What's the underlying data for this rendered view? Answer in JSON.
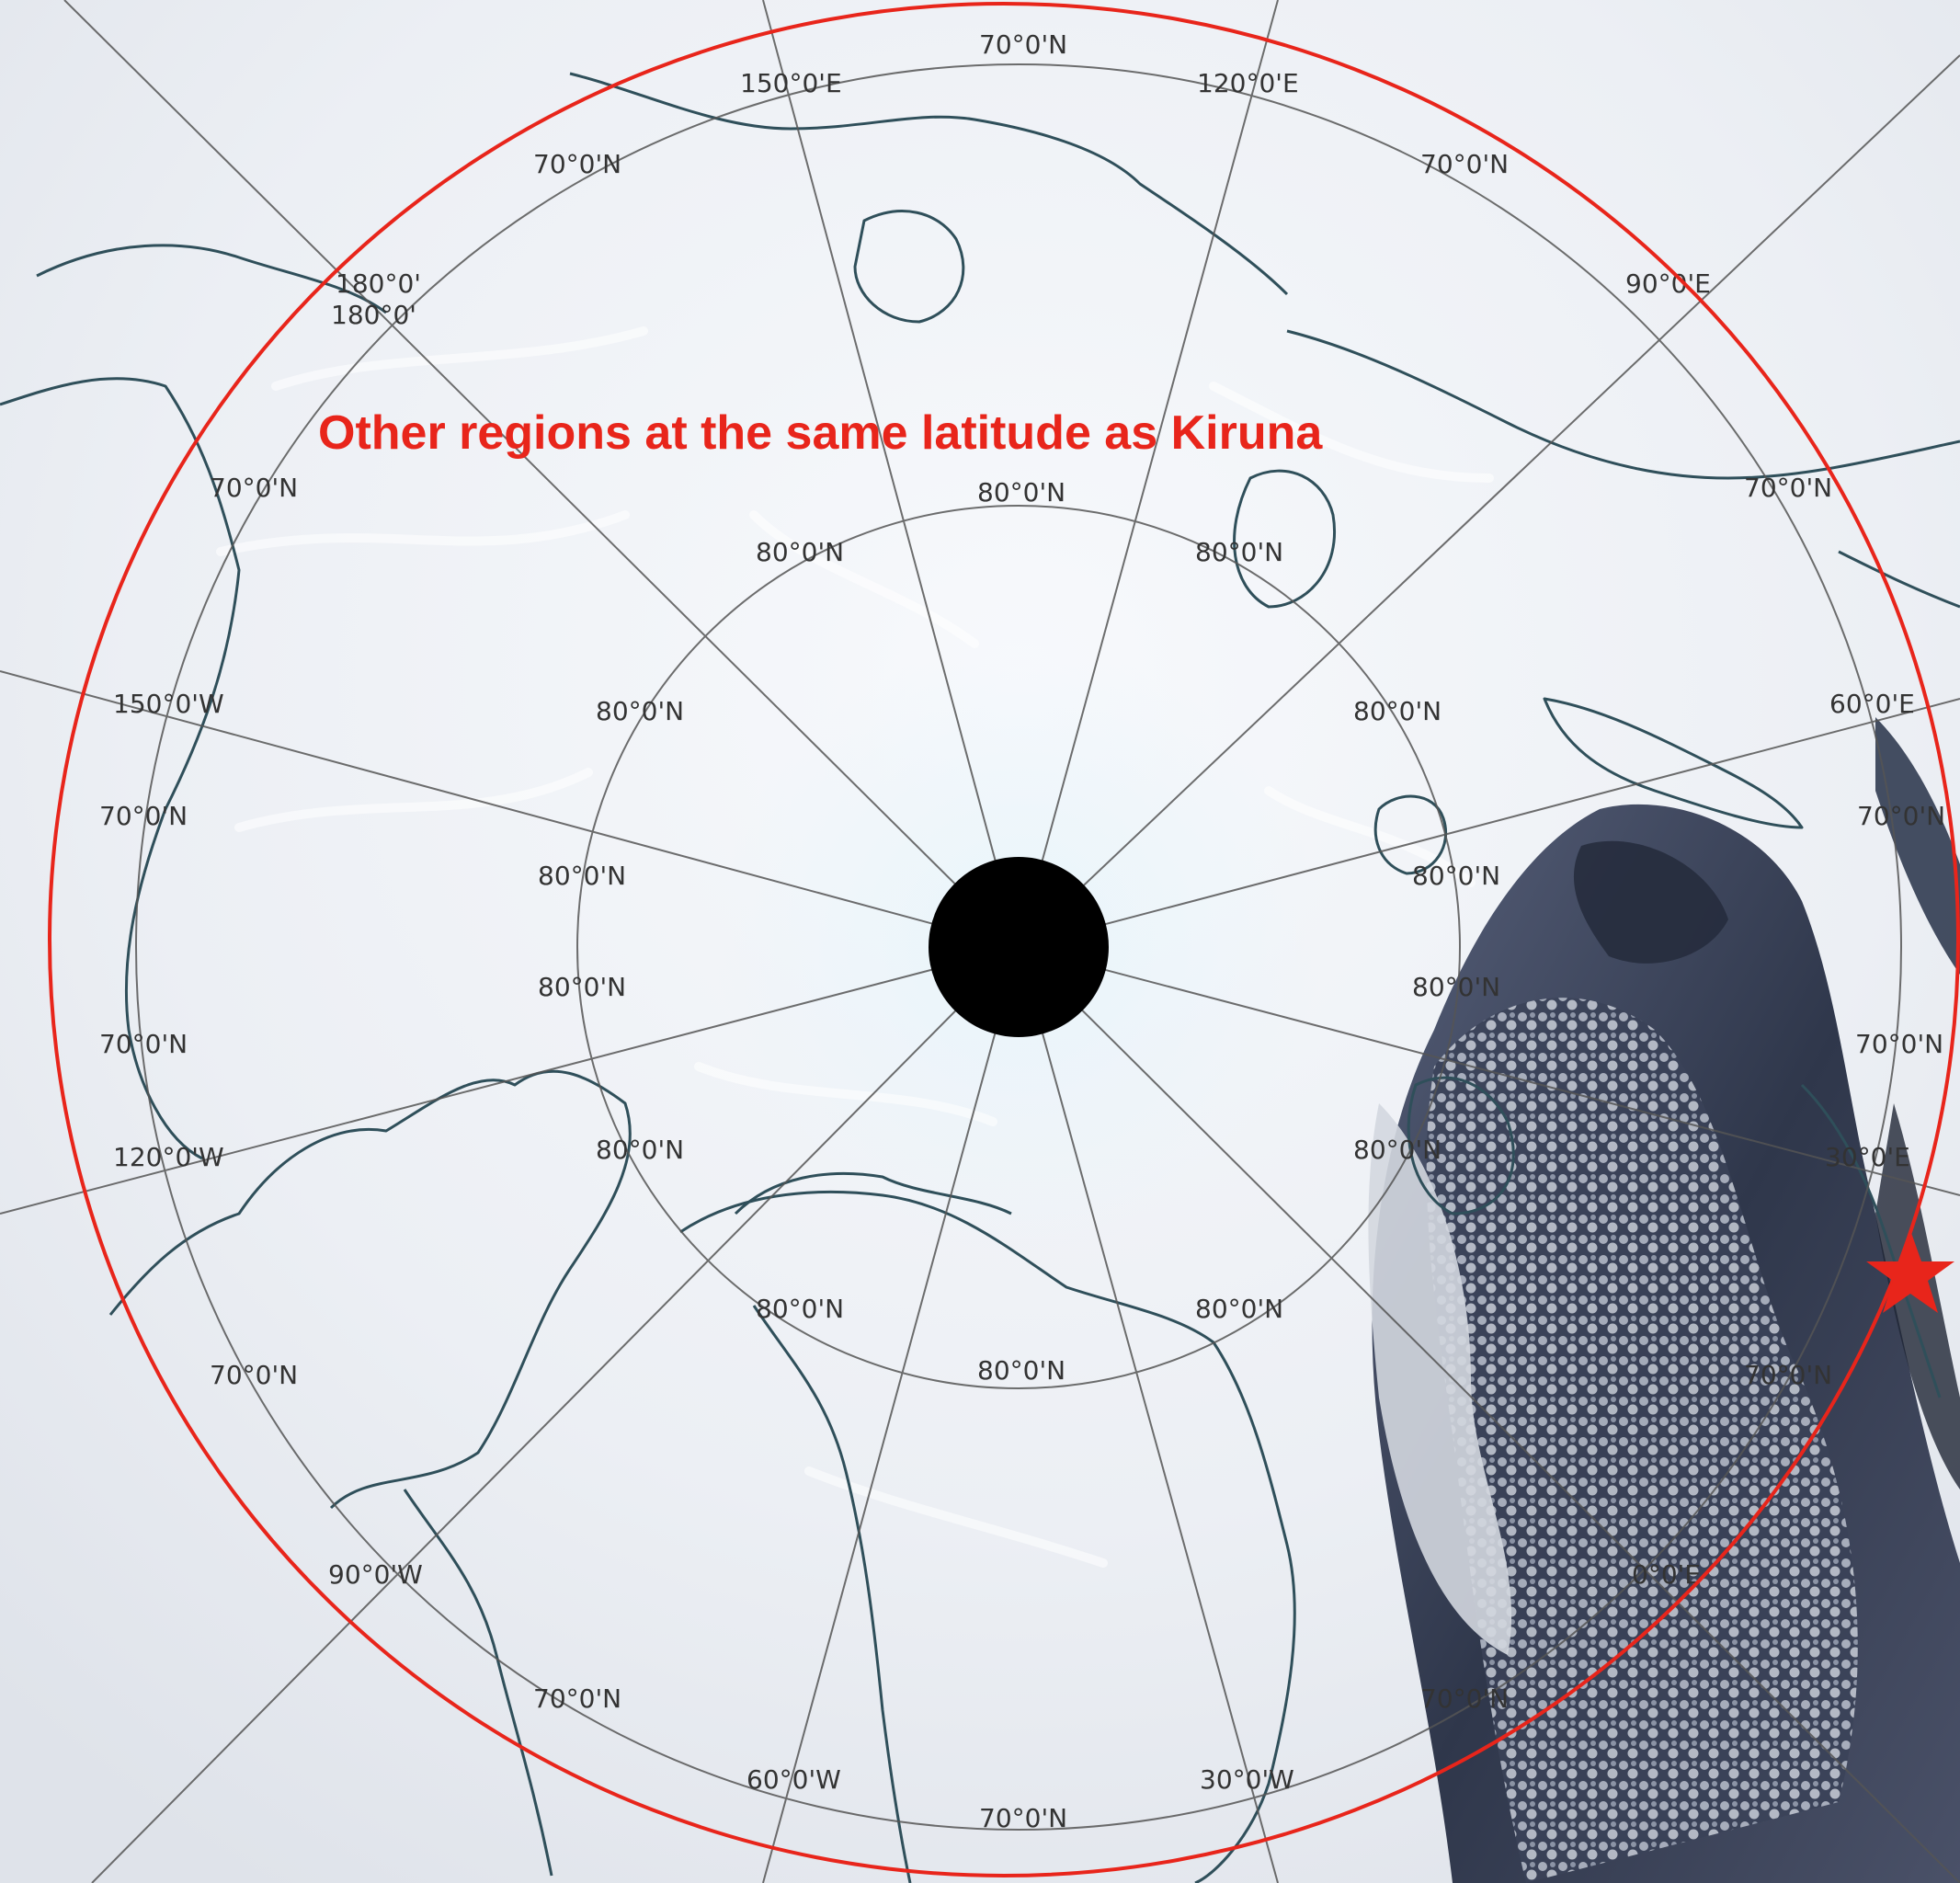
{
  "map": {
    "projection": "north-polar-stereographic",
    "base": "satellite-imagery-arctic-sea-ice",
    "colors": {
      "ice": "#f2f5f9",
      "ice_shadow": "#dfe5ee",
      "coastline": "#2f4f5a",
      "graticule": "#555555",
      "ocean_dark": "#2b3346",
      "cloud": "#c7ccd6",
      "pole_mask": "#000000",
      "highlight": "#e8251b"
    },
    "annotation": {
      "text": "Other regions at the same latitude as Kiruna",
      "color": "#e8251b"
    },
    "latitude_circle": {
      "latitude": "68°N",
      "color": "#e8251b"
    },
    "marker": {
      "icon": "red-star-icon",
      "place": "Kiruna",
      "color": "#e8251b"
    },
    "graticule_labels": {
      "lat70_top": "70°0'N",
      "lon150E": "150°0'E",
      "lon120E": "120°0'E",
      "lat70_ul": "70°0'N",
      "lat70_ur": "70°0'N",
      "lon180_a": "180°0'",
      "lon180_b": "180°0'",
      "lon90E": "90°0'E",
      "lat70_left1": "70°0'N",
      "lat70_right1": "70°0'N",
      "lat80_top": "80°0'N",
      "lat80_ul": "80°0'N",
      "lat80_ur": "80°0'N",
      "lon150W": "150°0'W",
      "lat80_l1": "80°0'N",
      "lat80_r1": "80°0'N",
      "lon60E": "60°0'E",
      "lat70_left2": "70°0'N",
      "lat70_right2": "70°0'N",
      "lat80_l2": "80°0'N",
      "lat80_r2": "80°0'N",
      "lat80_l3": "80°0'N",
      "lat80_r3": "80°0'N",
      "lat70_left3": "70°0'N",
      "lat70_right3": "70°0'N",
      "lon120W": "120°0'W",
      "lat80_l4": "80°0'N",
      "lat80_r4": "80°0'N",
      "lon30E": "30°0'E",
      "lat80_bl": "80°0'N",
      "lat80_br": "80°0'N",
      "lat70_ll": "70°0'N",
      "lat70_lr": "70°0'N",
      "lat80_bottom": "80°0'N",
      "lon90W": "90°0'W",
      "lon0E": "0°0'E",
      "lat70_bl": "70°0'N",
      "lat70_br": "70°0'N",
      "lon60W": "60°0'W",
      "lon30W": "30°0'W",
      "lat70_bottom": "70°0'N"
    }
  }
}
